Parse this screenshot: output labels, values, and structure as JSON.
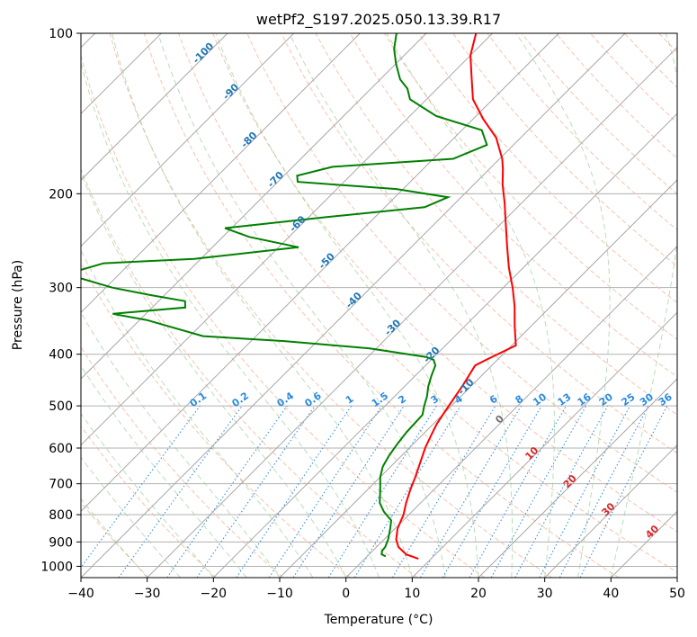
{
  "chart_data": {
    "type": "line",
    "subtype": "skew-t log-p diagram",
    "title": "wetPf2_S197.2025.050.13.39.R17",
    "xlabel": "Temperature (°C)",
    "ylabel": "Pressure (hPa)",
    "xlim": [
      -40,
      50
    ],
    "ylim": [
      1050,
      100
    ],
    "y_scale": "log",
    "x_ticks": [
      "−40",
      "−30",
      "−20",
      "−10",
      "0",
      "10",
      "20",
      "30",
      "40",
      "50"
    ],
    "y_ticks": [
      "100",
      "200",
      "300",
      "400",
      "500",
      "600",
      "700",
      "800",
      "900",
      "1000"
    ],
    "grid": true,
    "series": [
      {
        "color": "#ff0000",
        "points": [
          [
            8.1,
            968
          ],
          [
            5.6,
            950
          ],
          [
            3.3,
            920
          ],
          [
            1.8,
            890
          ],
          [
            0.4,
            850
          ],
          [
            -0.8,
            800
          ],
          [
            -2.2,
            760
          ],
          [
            -3.5,
            720
          ],
          [
            -4.7,
            680
          ],
          [
            -6.1,
            640
          ],
          [
            -7.6,
            600
          ],
          [
            -8.7,
            565
          ],
          [
            -9.5,
            540
          ],
          [
            -10.4,
            500
          ],
          [
            -11.3,
            460
          ],
          [
            -12.2,
            430
          ],
          [
            -12.5,
            420
          ],
          [
            -11.7,
            410
          ],
          [
            -9.4,
            385
          ],
          [
            -12.4,
            355
          ],
          [
            -15.5,
            325
          ],
          [
            -18.6,
            300
          ],
          [
            -22.2,
            275
          ],
          [
            -25.8,
            250
          ],
          [
            -29.7,
            225
          ],
          [
            -32.6,
            208
          ],
          [
            -35.7,
            192
          ],
          [
            -37.9,
            180
          ],
          [
            -39.6,
            172
          ],
          [
            -43.7,
            157
          ],
          [
            -48.4,
            145
          ],
          [
            -53.0,
            133
          ],
          [
            -56.5,
            121
          ],
          [
            -60.0,
            110
          ],
          [
            -62.5,
            100
          ]
        ]
      },
      {
        "color": "#008000",
        "points": [
          [
            2.8,
            958
          ],
          [
            1.9,
            950
          ],
          [
            1.4,
            935
          ],
          [
            1.3,
            920
          ],
          [
            0.6,
            890
          ],
          [
            -0.7,
            850
          ],
          [
            -1.8,
            820
          ],
          [
            -4.2,
            790
          ],
          [
            -6.2,
            760
          ],
          [
            -8.0,
            720
          ],
          [
            -10.0,
            680
          ],
          [
            -11.2,
            650
          ],
          [
            -11.9,
            620
          ],
          [
            -12.4,
            590
          ],
          [
            -12.8,
            560
          ],
          [
            -12.9,
            540
          ],
          [
            -13.0,
            520
          ],
          [
            -14.1,
            500
          ],
          [
            -15.1,
            480
          ],
          [
            -16.4,
            460
          ],
          [
            -17.5,
            440
          ],
          [
            -18.5,
            420
          ],
          [
            -19.6,
            410
          ],
          [
            -21.1,
            405
          ],
          [
            -31.0,
            390
          ],
          [
            -45.0,
            378
          ],
          [
            -58.0,
            370
          ],
          [
            -69.0,
            345
          ],
          [
            -75.0,
            336
          ],
          [
            -65.0,
            327
          ],
          [
            -66.0,
            318
          ],
          [
            -72.0,
            310
          ],
          [
            -79.0,
            300
          ],
          [
            -88.0,
            283
          ],
          [
            -84.0,
            270
          ],
          [
            -71.0,
            265
          ],
          [
            -57.0,
            252
          ],
          [
            -66.0,
            241
          ],
          [
            -71.0,
            232
          ],
          [
            -57.0,
            221
          ],
          [
            -44.0,
            212
          ],
          [
            -42.0,
            203
          ],
          [
            -51.0,
            196
          ],
          [
            -67.0,
            190
          ],
          [
            -68.0,
            185
          ],
          [
            -64.0,
            178
          ],
          [
            -47.0,
            172
          ],
          [
            -44.0,
            162
          ],
          [
            -47.0,
            152
          ],
          [
            -56.0,
            143
          ],
          [
            -62.5,
            133
          ],
          [
            -64.5,
            127
          ],
          [
            -67.0,
            122
          ],
          [
            -70.0,
            114
          ],
          [
            -72.5,
            107
          ],
          [
            -74.5,
            100
          ]
        ]
      }
    ],
    "isotherm_skew": 1.0,
    "dry_adiabats_label": "red dashed",
    "moist_adiabats_label": "green dashed",
    "mixing_ratio_labels": [
      "0.1",
      "0.2",
      "0.4",
      "0.6",
      "1",
      "1.5",
      "2",
      "3",
      "4",
      "6",
      "8",
      "10",
      "13",
      "16",
      "20",
      "25",
      "30",
      "36"
    ],
    "isotherm_labels_blue": [
      "-100",
      "-90",
      "-80",
      "-70",
      "-60",
      "-50",
      "-40",
      "-30",
      "-20",
      "-10"
    ],
    "isotherm_labels_gray": [
      "0"
    ],
    "isotherm_labels_red": [
      "10",
      "20",
      "30",
      "40"
    ]
  }
}
